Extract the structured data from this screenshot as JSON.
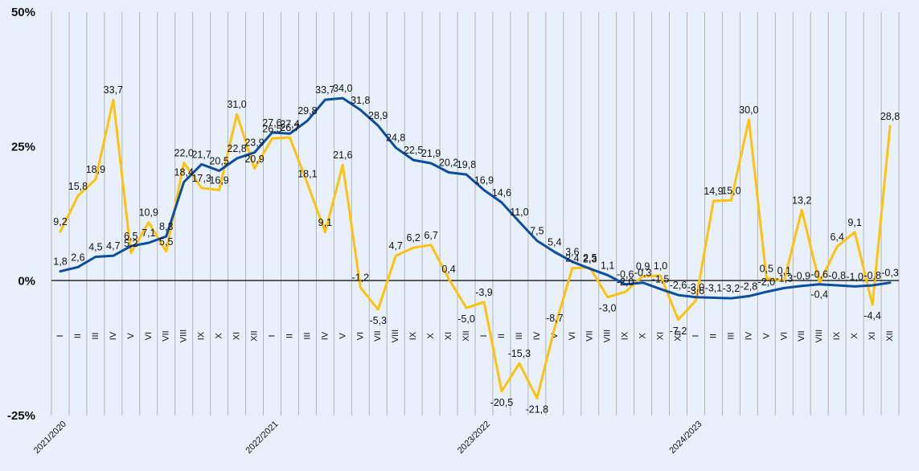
{
  "chart_data": {
    "type": "line",
    "title": "",
    "xlabel": "",
    "ylabel": "",
    "ylim": [
      -25,
      50
    ],
    "y_ticks": [
      "50%",
      "25%",
      "0%",
      "-25%"
    ],
    "y_tick_values": [
      50,
      25,
      0,
      -25
    ],
    "grid": "vertical",
    "legend": "none",
    "month_labels": [
      "I",
      "II",
      "III",
      "IV",
      "V",
      "VI",
      "VII",
      "VIII",
      "IX",
      "X",
      "XI",
      "XII",
      "I",
      "II",
      "III",
      "IV",
      "V",
      "VI",
      "VII",
      "VIII",
      "IX",
      "X",
      "XI",
      "XII",
      "I",
      "II",
      "III",
      "IV",
      "V",
      "VI",
      "VII",
      "VIII",
      "IX",
      "X",
      "XI",
      "XII",
      "I",
      "II",
      "III",
      "IV",
      "V",
      "VI",
      "VII",
      "VIII",
      "IX",
      "X",
      "XI",
      "XII"
    ],
    "year_labels": [
      "2021/2020",
      "2022/2021",
      "2023/2022",
      "2024/2023"
    ],
    "series": [
      {
        "color": "#0a4da2",
        "values": [
          1.8,
          2.6,
          4.5,
          4.7,
          6.5,
          7.1,
          8.3,
          18.4,
          21.7,
          20.5,
          22.8,
          23.9,
          27.6,
          27.4,
          29.8,
          33.7,
          34.0,
          31.8,
          28.9,
          24.8,
          22.5,
          21.9,
          20.2,
          19.8,
          16.9,
          14.6,
          11.0,
          7.5,
          5.4,
          3.6,
          2.3,
          1.1,
          -0.6,
          -0.3,
          -1.5,
          -2.6,
          -3.0,
          -3.1,
          -3.2,
          -2.8,
          -2.0,
          -1.3,
          -0.9,
          -0.6,
          -0.8,
          -1.0,
          -0.8,
          -0.3
        ],
        "labels": [
          "1,8",
          "2,6",
          "4,5",
          "4,7",
          "6,5",
          "7,1",
          "8,3",
          "18,4",
          "21,7",
          "20,5",
          "22,8",
          "23,9",
          "27,6",
          "27,4",
          "29,8",
          "33,7",
          "34,0",
          "31,8",
          "28,9",
          "24,8",
          "22,5",
          "21,9",
          "20,2",
          "19,8",
          "16,9",
          "14,6",
          "11,0",
          "7,5",
          "5,4",
          "3,6",
          "2,3",
          "1,1",
          "-0,6",
          "-0,3",
          "-1,5",
          "-2,6",
          "-3,0",
          "-3,1",
          "-3,2",
          "-2,8",
          "-2,0",
          "-1,3",
          "-0,9",
          "-0,6",
          "-0,8",
          "-1,0",
          "-0,8",
          "-0,3"
        ]
      },
      {
        "color": "#ffc20e",
        "values": [
          9.2,
          15.8,
          18.9,
          33.7,
          5.2,
          10.9,
          5.5,
          22.0,
          17.3,
          16.9,
          31.0,
          20.9,
          26.5,
          26.7,
          18.1,
          9.1,
          21.6,
          -1.2,
          -5.3,
          4.7,
          6.2,
          6.7,
          0.4,
          -5.0,
          -3.9,
          -20.5,
          -15.3,
          -21.8,
          -8.7,
          2.4,
          2.5,
          -3.0,
          -2.0,
          0.9,
          1.0,
          -7.2,
          -3.6,
          14.9,
          15.0,
          30.0,
          0.5,
          0.1,
          13.2,
          -0.4,
          6.4,
          9.1,
          -4.4,
          28.8
        ],
        "labels": [
          "9,2",
          "15,8",
          "18,9",
          "33,7",
          "5,2",
          "10,9",
          "5,5",
          "22,0",
          "17,3",
          "16,9",
          "31,0",
          "20,9",
          "26,5",
          "26,7",
          "18,1",
          "9,1",
          "21,6",
          "-1,2",
          "-5,3",
          "4,7",
          "6,2",
          "6,7",
          "0,4",
          "-5,0",
          "-3,9",
          "-20,5",
          "-15,3",
          "-21,8",
          "-8,7",
          "2,4",
          "2,5",
          "-3,0",
          "-2,0",
          "0,9",
          "1,0",
          "-7,2",
          "-3,6",
          "14,9",
          "15,0",
          "30,0",
          "0,5",
          "0,1",
          "13,2",
          "-0,4",
          "6,4",
          "9,1",
          "-4,4",
          "28,8"
        ]
      }
    ]
  }
}
